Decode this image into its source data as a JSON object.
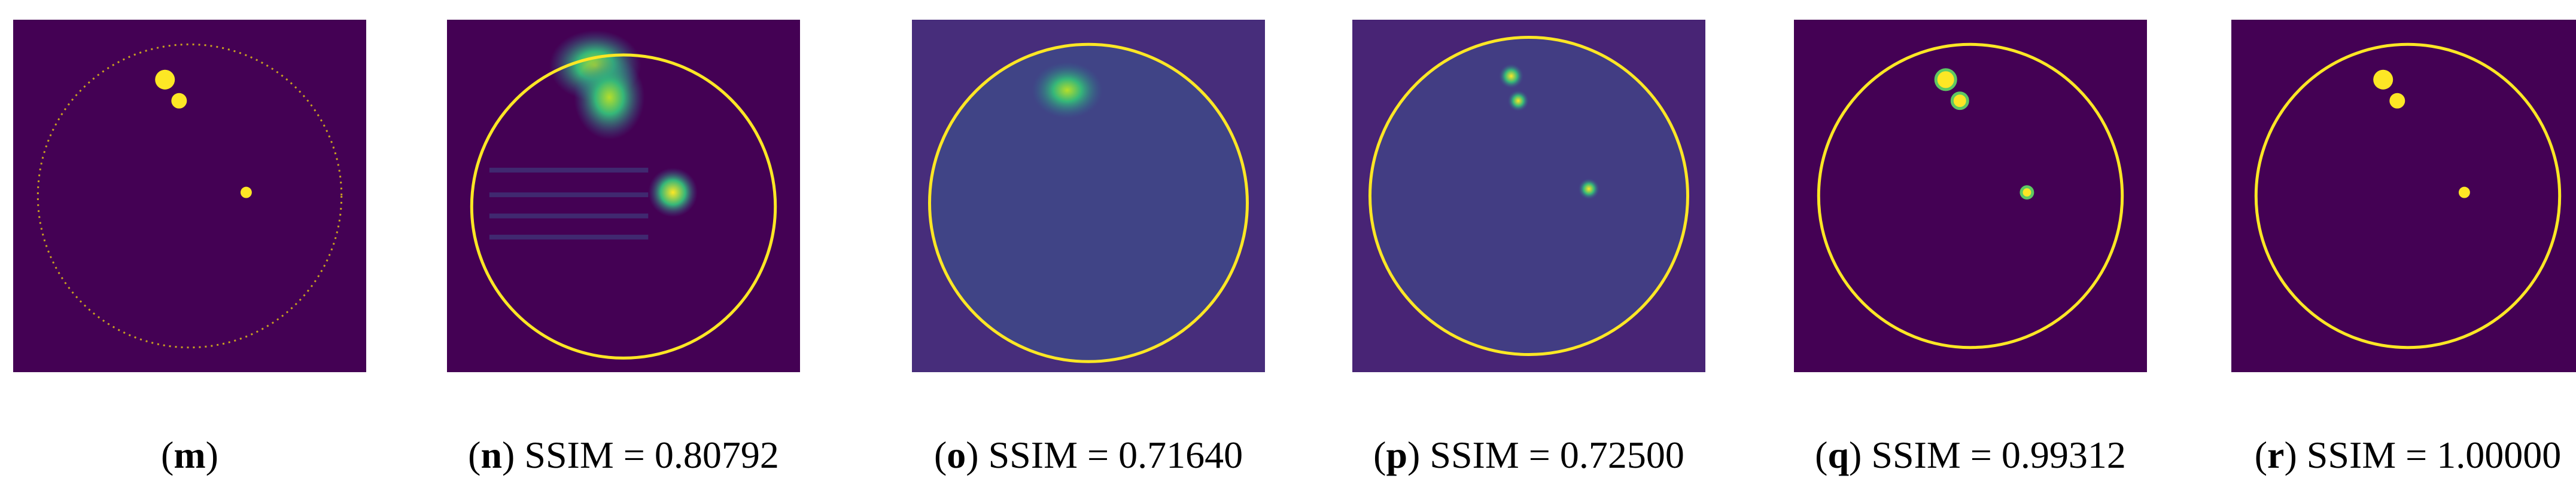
{
  "panels": [
    {
      "label": "(m)"
    },
    {
      "label": "(n)",
      "caption": "SSIM = 0.80792"
    },
    {
      "label": "(o)",
      "caption": "SSIM = 0.71640"
    },
    {
      "label": "(p)",
      "caption": "SSIM = 0.72500"
    },
    {
      "label": "(q)",
      "caption": "SSIM = 0.99312"
    },
    {
      "label": "(r)",
      "caption": "SSIM = 1.00000"
    }
  ]
}
